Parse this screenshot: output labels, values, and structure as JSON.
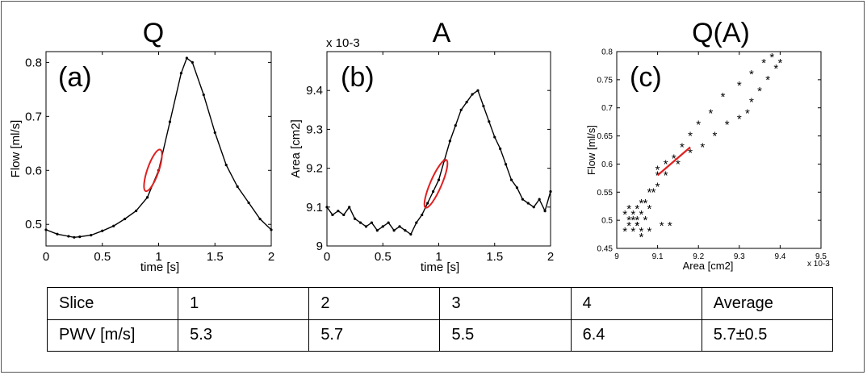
{
  "chart_data": [
    {
      "type": "line",
      "panel_label": "(a)",
      "title": "Q",
      "xlabel": "time [s]",
      "ylabel": "Flow [ml/s]",
      "xlim": [
        0,
        2
      ],
      "ylim": [
        0.46,
        0.82
      ],
      "xticks": [
        0,
        0.5,
        1,
        1.5,
        2
      ],
      "xtick_labels": [
        "0",
        "0.5",
        "1",
        "1.5",
        "2"
      ],
      "yticks": [
        0.5,
        0.6,
        0.7,
        0.8
      ],
      "ytick_labels": [
        "0.5",
        "0.6",
        "0.7",
        "0.8"
      ],
      "series": [
        {
          "name": "Flow",
          "x": [
            0,
            0.1,
            0.2,
            0.25,
            0.3,
            0.4,
            0.5,
            0.6,
            0.7,
            0.8,
            0.9,
            1.0,
            1.1,
            1.2,
            1.25,
            1.3,
            1.4,
            1.5,
            1.6,
            1.7,
            1.8,
            1.9,
            2.0
          ],
          "y": [
            0.49,
            0.482,
            0.478,
            0.476,
            0.477,
            0.48,
            0.488,
            0.497,
            0.51,
            0.525,
            0.55,
            0.6,
            0.69,
            0.78,
            0.808,
            0.8,
            0.74,
            0.67,
            0.61,
            0.57,
            0.54,
            0.51,
            0.49
          ]
        }
      ],
      "highlight": {
        "x_range": [
          0.9,
          1.0
        ],
        "y_range": [
          0.57,
          0.63
        ],
        "color": "#e02020"
      }
    },
    {
      "type": "line",
      "panel_label": "(b)",
      "title": "A",
      "xlabel": "time [s]",
      "ylabel": "Area [cm2]",
      "scale_label": "x 10-3",
      "xlim": [
        0,
        2
      ],
      "ylim": [
        9.0,
        9.5
      ],
      "xticks": [
        0,
        0.5,
        1,
        1.5,
        2
      ],
      "xtick_labels": [
        "0",
        "0.5",
        "1",
        "1.5",
        "2"
      ],
      "yticks": [
        9.0,
        9.1,
        9.2,
        9.3,
        9.4
      ],
      "ytick_labels": [
        "9",
        "9.1",
        "9.2",
        "9.3",
        "9.4"
      ],
      "series": [
        {
          "name": "Area",
          "x": [
            0,
            0.05,
            0.1,
            0.15,
            0.2,
            0.25,
            0.3,
            0.35,
            0.4,
            0.45,
            0.5,
            0.55,
            0.6,
            0.65,
            0.7,
            0.75,
            0.8,
            0.85,
            0.9,
            0.95,
            1.0,
            1.05,
            1.1,
            1.15,
            1.2,
            1.25,
            1.3,
            1.35,
            1.4,
            1.45,
            1.5,
            1.55,
            1.6,
            1.65,
            1.7,
            1.75,
            1.8,
            1.85,
            1.9,
            1.95,
            2.0
          ],
          "y": [
            9.1,
            9.08,
            9.09,
            9.08,
            9.1,
            9.07,
            9.06,
            9.05,
            9.06,
            9.04,
            9.05,
            9.06,
            9.04,
            9.05,
            9.04,
            9.03,
            9.06,
            9.08,
            9.11,
            9.14,
            9.17,
            9.22,
            9.27,
            9.31,
            9.35,
            9.37,
            9.39,
            9.4,
            9.36,
            9.32,
            9.28,
            9.25,
            9.21,
            9.17,
            9.15,
            9.12,
            9.11,
            9.1,
            9.12,
            9.09,
            9.14
          ]
        }
      ],
      "highlight": {
        "x_range": [
          0.9,
          1.05
        ],
        "y_range": [
          9.11,
          9.21
        ],
        "color": "#e02020"
      }
    },
    {
      "type": "scatter",
      "panel_label": "(c)",
      "title": "Q(A)",
      "xlabel": "Area [cm2]",
      "ylabel": "Flow [ml/s]",
      "scale_label": "x 10-3",
      "xlim": [
        9.0,
        9.5
      ],
      "ylim": [
        0.45,
        0.8
      ],
      "xticks": [
        9.0,
        9.1,
        9.2,
        9.3,
        9.4,
        9.5
      ],
      "xtick_labels": [
        "9",
        "9.1",
        "9.2",
        "9.3",
        "9.4",
        "9.5"
      ],
      "yticks": [
        0.45,
        0.5,
        0.55,
        0.6,
        0.65,
        0.7,
        0.75,
        0.8
      ],
      "ytick_labels": [
        "0.45",
        "0.5",
        "0.55",
        "0.6",
        "0.65",
        "0.7",
        "0.75",
        "0.8"
      ],
      "marker": "*",
      "series": [
        {
          "name": "Q vs A",
          "x": [
            9.02,
            9.03,
            9.04,
            9.05,
            9.06,
            9.04,
            9.03,
            9.05,
            9.07,
            9.08,
            9.05,
            9.06,
            9.04,
            9.03,
            9.02,
            9.05,
            9.06,
            9.07,
            9.08,
            9.09,
            9.1,
            9.1,
            9.12,
            9.14,
            9.16,
            9.18,
            9.2,
            9.23,
            9.26,
            9.3,
            9.33,
            9.36,
            9.38,
            9.4,
            9.39,
            9.37,
            9.35,
            9.33,
            9.32,
            9.3,
            9.27,
            9.24,
            9.21,
            9.18,
            9.15,
            9.12,
            9.1,
            9.08,
            9.06,
            9.11,
            9.13
          ],
          "y": [
            0.51,
            0.52,
            0.5,
            0.49,
            0.48,
            0.48,
            0.5,
            0.52,
            0.5,
            0.48,
            0.49,
            0.47,
            0.51,
            0.49,
            0.48,
            0.5,
            0.51,
            0.53,
            0.52,
            0.55,
            0.58,
            0.59,
            0.6,
            0.61,
            0.63,
            0.65,
            0.67,
            0.69,
            0.72,
            0.74,
            0.76,
            0.78,
            0.79,
            0.78,
            0.77,
            0.75,
            0.73,
            0.71,
            0.69,
            0.68,
            0.67,
            0.65,
            0.63,
            0.62,
            0.6,
            0.58,
            0.56,
            0.55,
            0.53,
            0.49,
            0.49
          ]
        }
      ],
      "fit_line": {
        "x": [
          9.1,
          9.18
        ],
        "y": [
          0.58,
          0.63
        ],
        "color": "#e02020"
      }
    }
  ],
  "table": {
    "header": [
      "Slice",
      "1",
      "2",
      "3",
      "4",
      "Average"
    ],
    "row": [
      "PWV [m/s]",
      "5.3",
      "5.7",
      "5.5",
      "6.4",
      "5.7±0.5"
    ]
  }
}
